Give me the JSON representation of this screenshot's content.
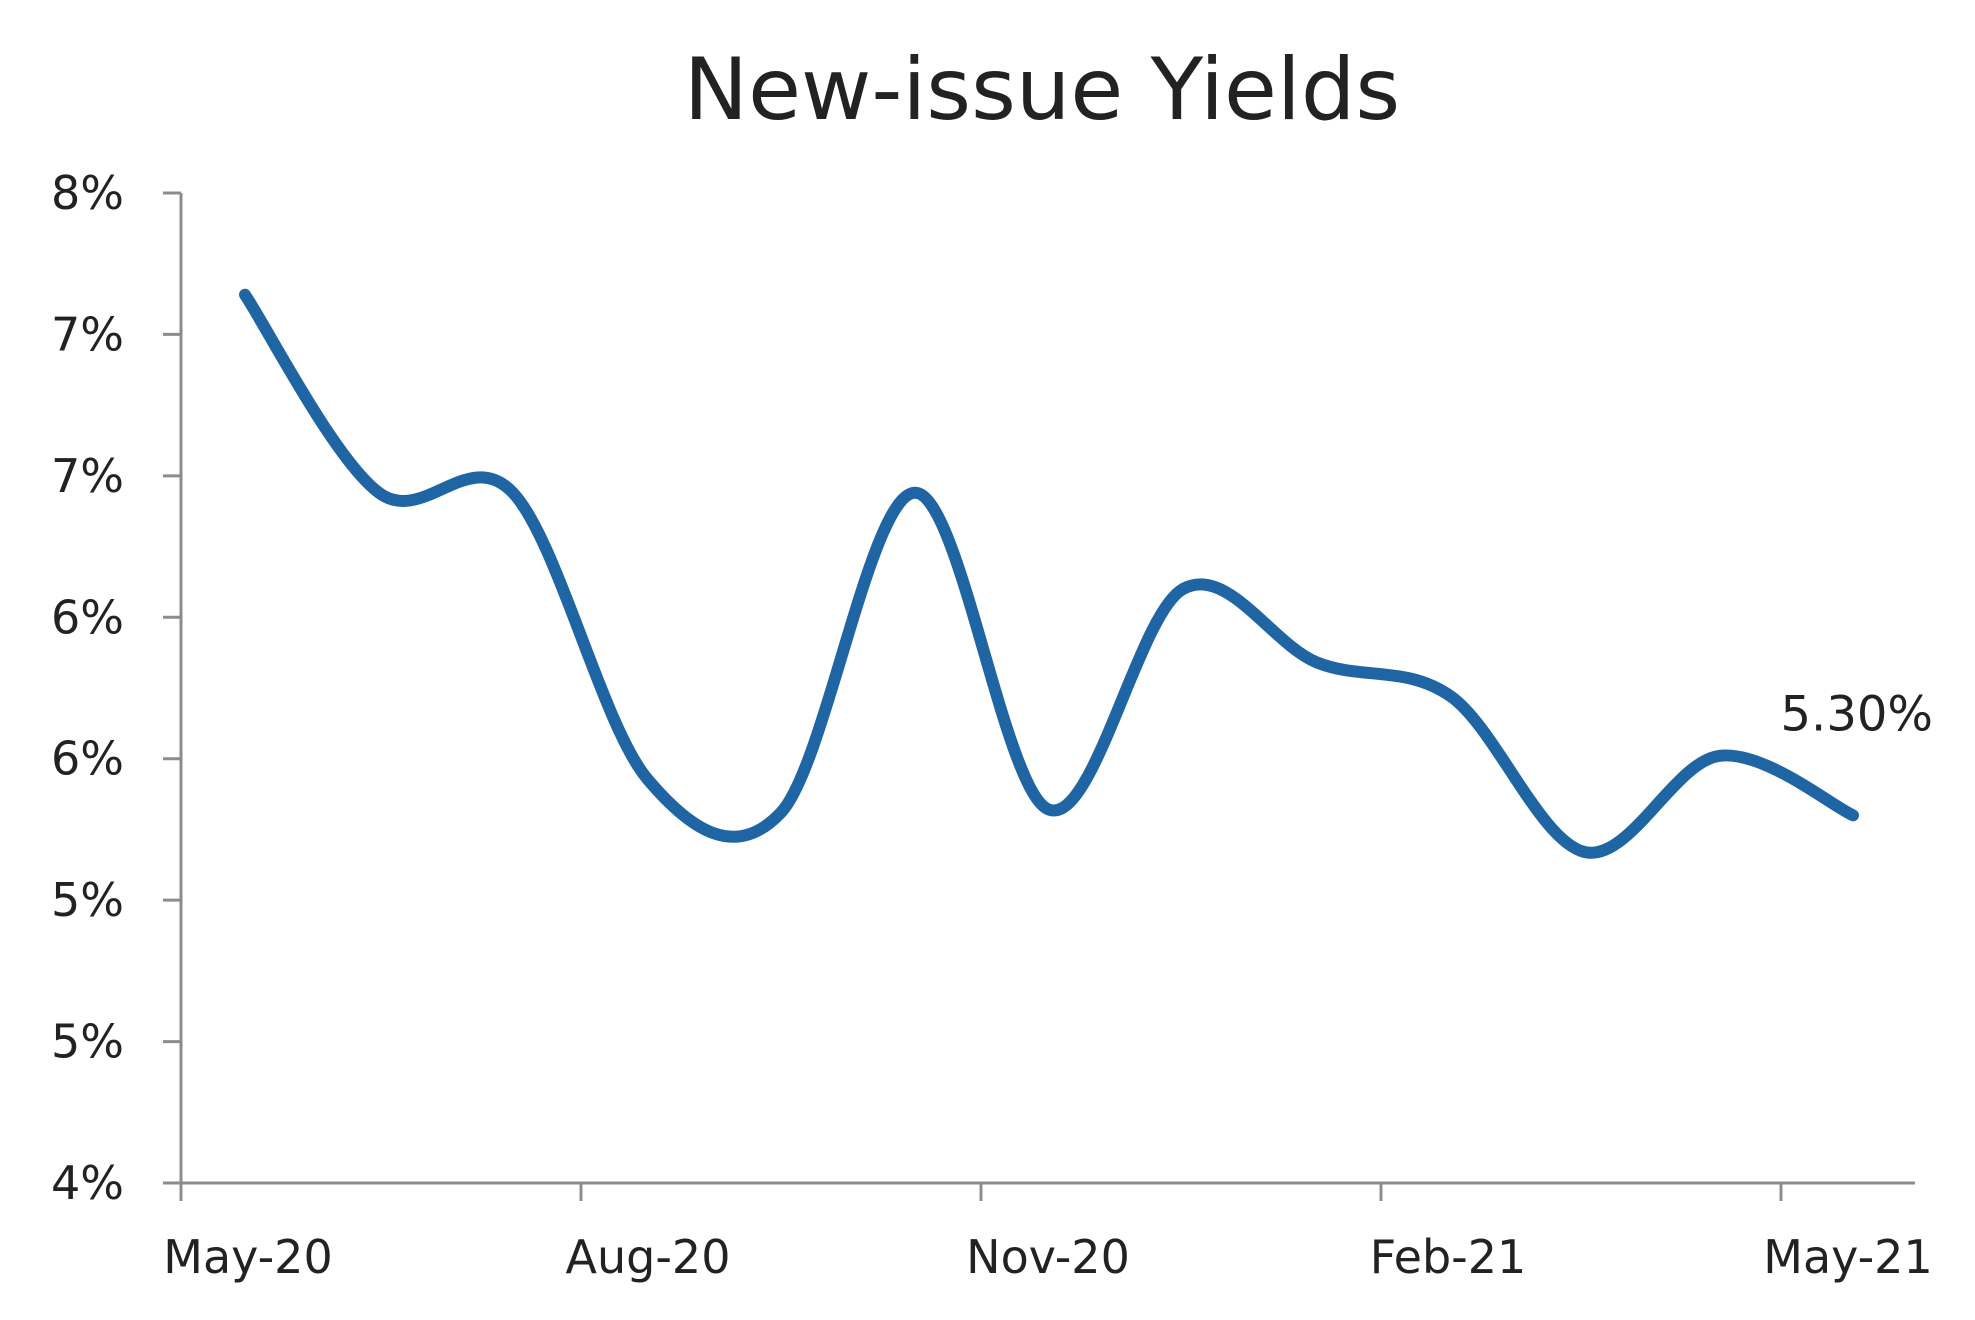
{
  "chart_data": {
    "type": "line",
    "title": "New-issue Yields",
    "xlabel": "",
    "ylabel": "",
    "y_tick_labels": [
      "8%",
      "7%",
      "7%",
      "6%",
      "6%",
      "5%",
      "5%",
      "4%"
    ],
    "ylim": [
      4.0,
      7.5
    ],
    "y_tick_step": 0.5,
    "x_tick_labels": [
      "May-20",
      "Aug-20",
      "Nov-20",
      "Feb-21",
      "May-21"
    ],
    "grid": false,
    "legend": "none",
    "series": [
      {
        "x": [
          "May-20",
          "Jun-20",
          "Jul-20",
          "Aug-20",
          "Sep-20",
          "Oct-20",
          "Nov-20",
          "Dec-20",
          "Jan-21",
          "Feb-21",
          "Mar-21",
          "Apr-21",
          "May-21"
        ],
        "values": [
          7.14,
          6.44,
          6.44,
          5.43,
          5.31,
          6.44,
          5.32,
          6.1,
          5.84,
          5.72,
          5.17,
          5.51,
          5.3
        ],
        "color": "#1f65a3"
      }
    ],
    "annotations": [
      {
        "text": "5.30%",
        "x": "May-21",
        "y": 5.3
      }
    ]
  }
}
